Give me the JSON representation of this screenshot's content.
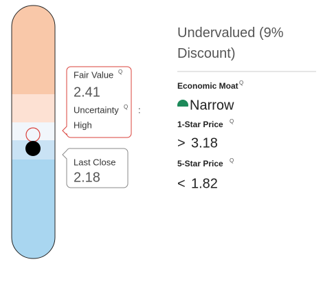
{
  "valuation": {
    "verdict": "Undervalued (9% Discount)",
    "fair_value": {
      "label": "Fair Value",
      "value": "2.41"
    },
    "uncertainty": {
      "label": "Uncertainty",
      "separator": ":",
      "value": "High"
    },
    "last_close": {
      "label": "Last Close",
      "value": "2.18"
    }
  },
  "details": {
    "economic_moat": {
      "label": "Economic Moat",
      "value": "Narrow"
    },
    "one_star": {
      "label": "1-Star Price",
      "symbol": ">",
      "value": "3.18"
    },
    "five_star": {
      "label": "5-Star Price",
      "symbol": "<",
      "value": "1.82"
    }
  }
}
